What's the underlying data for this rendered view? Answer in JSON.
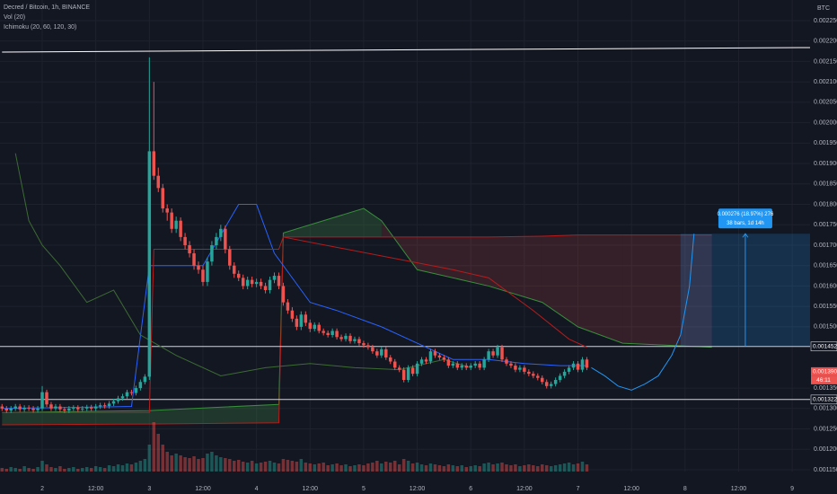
{
  "chart_data": {
    "type": "candlestick",
    "title": "Decred / Bitcoin, 1h, BINANCE",
    "indicators": [
      "Vol (20)",
      "Ichimoku (20, 60, 120, 30)"
    ],
    "currency": "BTC",
    "background": "#131722",
    "grid": true,
    "xlim": [
      -9.46,
      172
    ],
    "ylim": [
      0.0011456,
      0.0023005
    ],
    "xticks": [
      {
        "value": 0,
        "label": "2"
      },
      {
        "value": 12,
        "label": "12:00"
      },
      {
        "value": 24,
        "label": "3"
      },
      {
        "value": 36,
        "label": "12:00"
      },
      {
        "value": 48,
        "label": "4"
      },
      {
        "value": 60,
        "label": "12:00"
      },
      {
        "value": 72,
        "label": "5"
      },
      {
        "value": 84,
        "label": "12:00"
      },
      {
        "value": 96,
        "label": "6"
      },
      {
        "value": 108,
        "label": "12:00"
      },
      {
        "value": 120,
        "label": "7"
      },
      {
        "value": 132,
        "label": "12:00"
      },
      {
        "value": 144,
        "label": "8"
      },
      {
        "value": 156,
        "label": "12:00"
      },
      {
        "value": 168,
        "label": "9"
      }
    ],
    "yticks": [
      {
        "value": 0.00115,
        "label": "0.001150"
      },
      {
        "value": 0.0012,
        "label": "0.001200"
      },
      {
        "value": 0.00125,
        "label": "0.001250"
      },
      {
        "value": 0.0013,
        "label": "0.001300"
      },
      {
        "value": 0.00135,
        "label": "0.001350"
      },
      {
        "value": 0.0015,
        "label": "0.001500"
      },
      {
        "value": 0.00155,
        "label": "0.001550"
      },
      {
        "value": 0.0016,
        "label": "0.001600"
      },
      {
        "value": 0.00165,
        "label": "0.001650"
      },
      {
        "value": 0.0017,
        "label": "0.001700"
      },
      {
        "value": 0.00175,
        "label": "0.001750"
      },
      {
        "value": 0.0018,
        "label": "0.001800"
      },
      {
        "value": 0.00185,
        "label": "0.001850"
      },
      {
        "value": 0.0019,
        "label": "0.001900"
      },
      {
        "value": 0.00195,
        "label": "0.001950"
      },
      {
        "value": 0.002,
        "label": "0.002000"
      },
      {
        "value": 0.00205,
        "label": "0.002050"
      },
      {
        "value": 0.0021,
        "label": "0.002100"
      },
      {
        "value": 0.00215,
        "label": "0.002150"
      },
      {
        "value": 0.0022,
        "label": "0.002200"
      },
      {
        "value": 0.00225,
        "label": "0.002250"
      }
    ],
    "candles": {
      "up_color": "#26a69a",
      "down_color": "#ef5350",
      "x": [
        -9,
        -8,
        -7,
        -6,
        -5,
        -4,
        -3,
        -2,
        -1,
        0,
        1,
        2,
        3,
        4,
        5,
        6,
        7,
        8,
        9,
        10,
        11,
        12,
        13,
        14,
        15,
        16,
        17,
        18,
        19,
        20,
        21,
        22,
        23,
        24,
        25,
        26,
        27,
        28,
        29,
        30,
        31,
        32,
        33,
        34,
        35,
        36,
        37,
        38,
        39,
        40,
        41,
        42,
        43,
        44,
        45,
        46,
        47,
        48,
        49,
        50,
        51,
        52,
        53,
        54,
        55,
        56,
        57,
        58,
        59,
        60,
        61,
        62,
        63,
        64,
        65,
        66,
        67,
        68,
        69,
        70,
        71,
        72,
        73,
        74,
        75,
        76,
        77,
        78,
        79,
        80,
        81,
        82,
        83,
        84,
        85,
        86,
        87,
        88,
        89,
        90,
        91,
        92,
        93,
        94,
        95,
        96,
        97,
        98,
        99,
        100,
        101,
        102,
        103,
        104,
        105,
        106,
        107,
        108,
        109,
        110,
        111,
        112,
        113,
        114,
        115,
        116,
        117,
        118,
        119,
        120,
        121,
        122
      ],
      "open": [
        0.001305,
        0.0013,
        0.001295,
        0.0013,
        0.001305,
        0.001298,
        0.001302,
        0.0013,
        0.001296,
        0.0013,
        0.00134,
        0.00131,
        0.0013,
        0.001305,
        0.001298,
        0.001295,
        0.0013,
        0.001302,
        0.001298,
        0.0013,
        0.001303,
        0.0013,
        0.001305,
        0.001308,
        0.001306,
        0.001312,
        0.001318,
        0.001325,
        0.00133,
        0.00134,
        0.001338,
        0.00135,
        0.001365,
        0.001378,
        0.00193,
        0.00187,
        0.00184,
        0.00179,
        0.00178,
        0.00174,
        0.00176,
        0.00172,
        0.0017,
        0.00168,
        0.00165,
        0.00164,
        0.00161,
        0.00166,
        0.0017,
        0.00172,
        0.00174,
        0.00169,
        0.00165,
        0.00163,
        0.00162,
        0.0016,
        0.001615,
        0.001605,
        0.00161,
        0.0016,
        0.00159,
        0.001615,
        0.001625,
        0.0016,
        0.00156,
        0.00154,
        0.00152,
        0.0015,
        0.00153,
        0.00151,
        0.001495,
        0.001505,
        0.00149,
        0.001485,
        0.00148,
        0.00149,
        0.001475,
        0.00147,
        0.001478,
        0.001465,
        0.00147,
        0.00146,
        0.001455,
        0.00145,
        0.00144,
        0.00143,
        0.001445,
        0.001425,
        0.001415,
        0.0014,
        0.001395,
        0.00137,
        0.0014,
        0.001385,
        0.00141,
        0.00142,
        0.001415,
        0.00144,
        0.00143,
        0.001425,
        0.00142,
        0.001405,
        0.00141,
        0.0014,
        0.001405,
        0.0014,
        0.001405,
        0.00141,
        0.0014,
        0.00142,
        0.00144,
        0.00143,
        0.00145,
        0.00142,
        0.00141,
        0.001405,
        0.001395,
        0.0014,
        0.00139,
        0.001385,
        0.00138,
        0.001375,
        0.001365,
        0.001355,
        0.00136,
        0.00137,
        0.00138,
        0.00139,
        0.0014,
        0.00141,
        0.001395,
        0.00142
      ],
      "high": [
        0.001311,
        0.001306,
        0.001306,
        0.001311,
        0.001311,
        0.001308,
        0.001308,
        0.001306,
        0.001306,
        0.001355,
        0.001346,
        0.001316,
        0.001311,
        0.001311,
        0.001304,
        0.001306,
        0.001308,
        0.001308,
        0.001306,
        0.001309,
        0.001309,
        0.001311,
        0.001314,
        0.001314,
        0.001318,
        0.001324,
        0.001331,
        0.001336,
        0.001346,
        0.001346,
        0.001356,
        0.001371,
        0.001384,
        0.00216,
        0.0021,
        0.00189,
        0.00185,
        0.0018,
        0.00179,
        0.00177,
        0.001768,
        0.00173,
        0.00171,
        0.00169,
        0.00166,
        0.00165,
        0.00167,
        0.00171,
        0.00173,
        0.00175,
        0.001748,
        0.001698,
        0.001658,
        0.001638,
        0.001628,
        0.001623,
        0.001623,
        0.001618,
        0.001618,
        0.001608,
        0.001623,
        0.001633,
        0.001633,
        0.001608,
        0.001568,
        0.001548,
        0.001528,
        0.001538,
        0.001538,
        0.001518,
        0.001511,
        0.001511,
        0.001496,
        0.001491,
        0.001496,
        0.001496,
        0.001481,
        0.001484,
        0.001484,
        0.001476,
        0.001476,
        0.001466,
        0.001461,
        0.001456,
        0.001446,
        0.001451,
        0.001451,
        0.001431,
        0.001421,
        0.001406,
        0.001401,
        0.001406,
        0.001406,
        0.001416,
        0.001426,
        0.001426,
        0.001446,
        0.001446,
        0.001436,
        0.001431,
        0.001426,
        0.001416,
        0.001416,
        0.001411,
        0.001411,
        0.001411,
        0.001416,
        0.001416,
        0.001426,
        0.001446,
        0.001446,
        0.001456,
        0.001456,
        0.001426,
        0.001416,
        0.001411,
        0.001406,
        0.001406,
        0.001396,
        0.001391,
        0.001386,
        0.001381,
        0.001371,
        0.001366,
        0.001376,
        0.001386,
        0.001396,
        0.001406,
        0.001416,
        0.001416,
        0.001426,
        0.001426
      ],
      "low": [
        0.001294,
        0.001289,
        0.001289,
        0.001294,
        0.001292,
        0.001292,
        0.001294,
        0.00129,
        0.00129,
        0.001294,
        0.001304,
        0.001294,
        0.001294,
        0.001292,
        0.001289,
        0.001289,
        0.001294,
        0.001292,
        0.001292,
        0.001294,
        0.001294,
        0.001294,
        0.001299,
        0.0013,
        0.0013,
        0.001306,
        0.001312,
        0.001319,
        0.001324,
        0.001332,
        0.001332,
        0.001344,
        0.001359,
        0.00137,
        0.00186,
        0.00183,
        0.00178,
        0.00176,
        0.00173,
        0.00173,
        0.00171,
        0.00169,
        0.00167,
        0.00164,
        0.00163,
        0.0016,
        0.0016,
        0.00165,
        0.00169,
        0.00171,
        0.00168,
        0.00164,
        0.00162,
        0.001612,
        0.001592,
        0.001592,
        0.001597,
        0.001597,
        0.001592,
        0.001582,
        0.001582,
        0.001607,
        0.001592,
        0.001552,
        0.001532,
        0.001512,
        0.001492,
        0.001492,
        0.001502,
        0.001487,
        0.001489,
        0.001484,
        0.001479,
        0.001474,
        0.001474,
        0.001469,
        0.001464,
        0.001464,
        0.001459,
        0.001459,
        0.001454,
        0.001449,
        0.001444,
        0.001434,
        0.001424,
        0.001424,
        0.001419,
        0.001409,
        0.001394,
        0.001389,
        0.001364,
        0.001364,
        0.001379,
        0.001379,
        0.001404,
        0.001409,
        0.001409,
        0.001424,
        0.001419,
        0.001414,
        0.001399,
        0.001399,
        0.001394,
        0.001394,
        0.001394,
        0.001394,
        0.001399,
        0.001394,
        0.001394,
        0.001414,
        0.001424,
        0.001424,
        0.001414,
        0.001404,
        0.001399,
        0.001389,
        0.001389,
        0.001384,
        0.001379,
        0.001374,
        0.001369,
        0.001359,
        0.001349,
        0.001349,
        0.001354,
        0.001364,
        0.001374,
        0.001384,
        0.001394,
        0.001389,
        0.001389,
        0.001394
      ],
      "close": [
        0.0013,
        0.001295,
        0.0013,
        0.001305,
        0.001298,
        0.001302,
        0.0013,
        0.001296,
        0.0013,
        0.00134,
        0.00131,
        0.0013,
        0.001305,
        0.001298,
        0.001295,
        0.0013,
        0.001302,
        0.001298,
        0.0013,
        0.001303,
        0.0013,
        0.001305,
        0.001308,
        0.001306,
        0.001312,
        0.001318,
        0.001325,
        0.00133,
        0.00134,
        0.001338,
        0.00135,
        0.001365,
        0.001378,
        0.00193,
        0.00187,
        0.00184,
        0.00179,
        0.00178,
        0.00174,
        0.00176,
        0.00172,
        0.0017,
        0.00168,
        0.00165,
        0.00164,
        0.00161,
        0.00166,
        0.0017,
        0.00172,
        0.00174,
        0.00169,
        0.00165,
        0.00163,
        0.00162,
        0.0016,
        0.001615,
        0.001605,
        0.00161,
        0.0016,
        0.00159,
        0.001615,
        0.001625,
        0.0016,
        0.00156,
        0.00154,
        0.00152,
        0.0015,
        0.00153,
        0.00151,
        0.001495,
        0.001505,
        0.00149,
        0.001485,
        0.00148,
        0.00149,
        0.001475,
        0.00147,
        0.001478,
        0.001465,
        0.00147,
        0.00146,
        0.001455,
        0.00145,
        0.00144,
        0.00143,
        0.001445,
        0.001425,
        0.001415,
        0.0014,
        0.001395,
        0.00137,
        0.0014,
        0.001385,
        0.00141,
        0.00142,
        0.001415,
        0.00144,
        0.00143,
        0.001425,
        0.00142,
        0.001405,
        0.00141,
        0.0014,
        0.001405,
        0.0014,
        0.001405,
        0.00141,
        0.0014,
        0.00142,
        0.00144,
        0.00143,
        0.00145,
        0.00142,
        0.00141,
        0.001405,
        0.001395,
        0.0014,
        0.00139,
        0.001385,
        0.00138,
        0.001375,
        0.001365,
        0.001355,
        0.00136,
        0.00137,
        0.00138,
        0.00139,
        0.0014,
        0.00141,
        0.001395,
        0.00142,
        0.0014
      ],
      "volume": [
        4,
        3,
        5,
        4,
        3,
        6,
        4,
        3,
        5,
        12,
        8,
        5,
        4,
        6,
        3,
        4,
        5,
        3,
        4,
        5,
        4,
        6,
        5,
        4,
        7,
        6,
        8,
        7,
        9,
        8,
        10,
        12,
        14,
        30,
        55,
        42,
        30,
        22,
        18,
        20,
        18,
        16,
        15,
        17,
        14,
        15,
        20,
        22,
        18,
        16,
        15,
        14,
        12,
        13,
        11,
        10,
        12,
        9,
        10,
        11,
        12,
        10,
        9,
        14,
        13,
        12,
        11,
        14,
        10,
        9,
        8,
        9,
        10,
        7,
        8,
        9,
        7,
        8,
        6,
        7,
        8,
        7,
        9,
        10,
        12,
        9,
        11,
        10,
        12,
        8,
        14,
        12,
        9,
        10,
        8,
        7,
        9,
        8,
        7,
        6,
        8,
        7,
        6,
        7,
        5,
        6,
        7,
        6,
        9,
        10,
        8,
        9,
        10,
        8,
        7,
        8,
        6,
        7,
        8,
        7,
        6,
        8,
        7,
        6,
        7,
        8,
        9,
        10,
        8,
        9,
        11,
        8
      ]
    },
    "cloud": {
      "color_up": "rgba(76,175,80,0.22)",
      "color_down": "rgba(239,83,80,0.16)",
      "line_a": "#388e3c",
      "line_b": "#b71c1c",
      "x": [
        -9,
        24,
        53,
        54,
        72,
        76,
        84,
        100,
        112,
        120,
        130,
        150
      ],
      "span_a": [
        0.00129,
        0.001295,
        0.00131,
        0.00173,
        0.00179,
        0.00176,
        0.00164,
        0.0016,
        0.00156,
        0.0015,
        0.00146,
        0.00145
      ],
      "span_b": [
        0.00126,
        0.001262,
        0.001265,
        0.00172,
        0.00172,
        0.00172,
        0.00172,
        0.00172,
        0.001722,
        0.001725,
        0.001725,
        0.001725
      ]
    },
    "lines": [
      {
        "color": "#ffffff",
        "x": [
          -9,
          172
        ],
        "values": [
          0.002173,
          0.002184
        ]
      },
      {
        "color": "#2962ff",
        "x": [
          -9,
          20,
          24,
          36,
          44,
          48,
          52,
          60,
          66,
          76,
          84,
          92,
          100,
          108,
          116,
          122
        ],
        "values": [
          0.0013,
          0.001305,
          0.00165,
          0.00165,
          0.0018,
          0.0018,
          0.00168,
          0.00156,
          0.00154,
          0.0015,
          0.00146,
          0.00142,
          0.00142,
          0.00141,
          0.001405,
          0.001405
        ]
      },
      {
        "color": "#b71c1c",
        "x": [
          -9,
          24,
          25,
          53,
          54,
          92,
          100,
          110,
          118,
          122
        ],
        "values": [
          0.00129,
          0.00129,
          0.00169,
          0.00169,
          0.00172,
          0.00164,
          0.00162,
          0.00154,
          0.00147,
          0.00145
        ]
      },
      {
        "color": "#3d6b34",
        "x": [
          -6,
          -3,
          0,
          4,
          10,
          16,
          22,
          30,
          40,
          50,
          60,
          70,
          80,
          90,
          96
        ],
        "values": [
          0.001925,
          0.00176,
          0.0017,
          0.00165,
          0.00156,
          0.00159,
          0.00148,
          0.00143,
          0.00138,
          0.0014,
          0.00141,
          0.0014,
          0.001395,
          0.00142,
          0.0014
        ]
      },
      {
        "color": "#2196f3",
        "x": [
          123,
          126,
          129,
          132,
          135,
          138,
          141,
          143,
          145,
          146
        ],
        "values": [
          0.0014,
          0.00138,
          0.001355,
          0.001345,
          0.00136,
          0.00138,
          0.00143,
          0.00148,
          0.0016,
          0.001728
        ]
      }
    ],
    "levels": [
      {
        "value": 0.001452,
        "color": "#d1d4dc"
      },
      {
        "value": 0.001322,
        "color": "#d1d4dc"
      }
    ],
    "price_labels": [
      {
        "value": 0.001452,
        "label": "0.001452",
        "color": "#131722"
      },
      {
        "value": 0.00139,
        "label": "0.001390",
        "color": "#ef5350"
      },
      {
        "value": 0.001322,
        "label": "0.001322",
        "color": "#131722"
      }
    ],
    "countdown": "46:11",
    "measure": {
      "x": [
        143,
        172
      ],
      "from": 0.001452,
      "to": 0.001728,
      "color": "#2196f3",
      "label": "0.000276 (18.97%) 276",
      "bars": "38 bars, 1d 14h"
    }
  }
}
